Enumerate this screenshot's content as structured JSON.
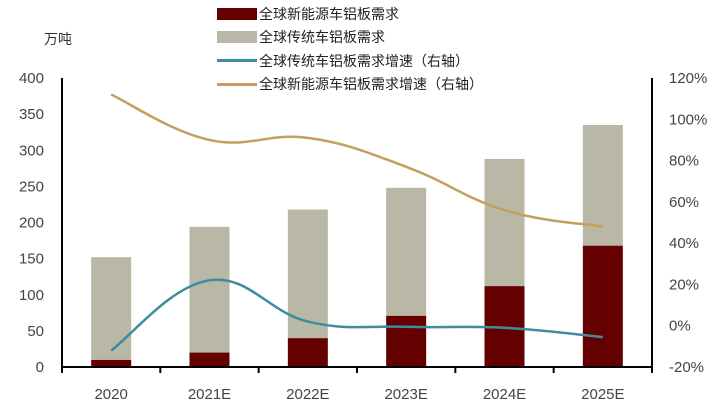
{
  "chart_data": {
    "type": "bar",
    "stacked": true,
    "title": "",
    "xlabel": "",
    "ylabel": "万吨",
    "ylabel_right": "",
    "categories": [
      "2020",
      "2021E",
      "2022E",
      "2023E",
      "2024E",
      "2025E"
    ],
    "ylim": [
      0,
      400
    ],
    "yticks": [
      0,
      50,
      100,
      150,
      200,
      250,
      300,
      350,
      400
    ],
    "ylim_right": [
      -20,
      120
    ],
    "yticks_right": [
      "-20%",
      "0%",
      "20%",
      "40%",
      "60%",
      "80%",
      "100%",
      "120%"
    ],
    "grid": false,
    "legend_position": "top",
    "series": [
      {
        "name": "全球新能源车铝板需求",
        "type": "bar",
        "axis": "left",
        "color": "#640000",
        "values": [
          10,
          20,
          40,
          71,
          112,
          168
        ]
      },
      {
        "name": "全球传统车铝板需求",
        "type": "bar",
        "axis": "left",
        "color": "#B9B8A6",
        "values": [
          142,
          174,
          178,
          177,
          176,
          167
        ]
      },
      {
        "name": "全球传统车铝板需求增速（右轴）",
        "type": "line",
        "axis": "right",
        "color": "#3E8CA0",
        "values": [
          -12,
          22,
          2,
          -0.5,
          -1,
          -5.5
        ]
      },
      {
        "name": "全球新能源车铝板需求增速（右轴）",
        "type": "line",
        "axis": "right",
        "color": "#C49F5E",
        "values": [
          112,
          90,
          91,
          77,
          56,
          48
        ]
      }
    ]
  },
  "unit_label": "万吨",
  "legend": [
    {
      "label": "全球新能源车铝板需求",
      "kind": "box",
      "color": "#640000"
    },
    {
      "label": "全球传统车铝板需求",
      "kind": "box",
      "color": "#B9B8A6"
    },
    {
      "label": "全球传统车铝板需求增速（右轴）",
      "kind": "line",
      "color": "#3E8CA0"
    },
    {
      "label": "全球新能源车铝板需求增速（右轴）",
      "kind": "line",
      "color": "#C49F5E"
    }
  ]
}
